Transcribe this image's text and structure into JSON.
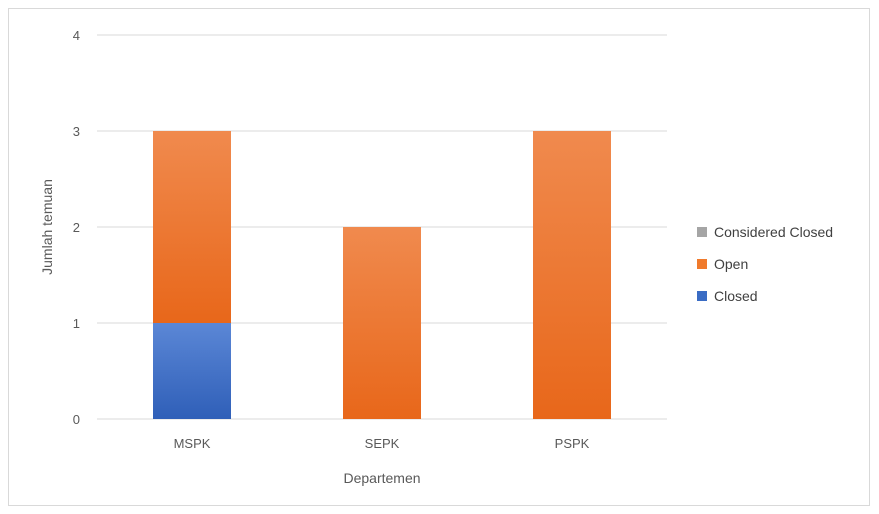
{
  "chart_data": {
    "type": "bar",
    "stacked": true,
    "title": "",
    "xlabel": "Departemen",
    "ylabel": "Jumlah temuan",
    "categories": [
      "MSPK",
      "SEPK",
      "PSPK"
    ],
    "series": [
      {
        "name": "Closed",
        "values": [
          1,
          0,
          0
        ],
        "color": "#3a6cc4"
      },
      {
        "name": "Open",
        "values": [
          2,
          2,
          3
        ],
        "color": "#f07a2c"
      },
      {
        "name": "Considered Closed",
        "values": [
          0,
          0,
          0
        ],
        "color": "#a5a5a5"
      }
    ],
    "ylim": [
      0,
      4
    ],
    "yticks": [
      "0",
      "1",
      "2",
      "3",
      "4"
    ],
    "grid": true,
    "legend": "right",
    "legend_order": [
      "Considered Closed",
      "Open",
      "Closed"
    ]
  }
}
